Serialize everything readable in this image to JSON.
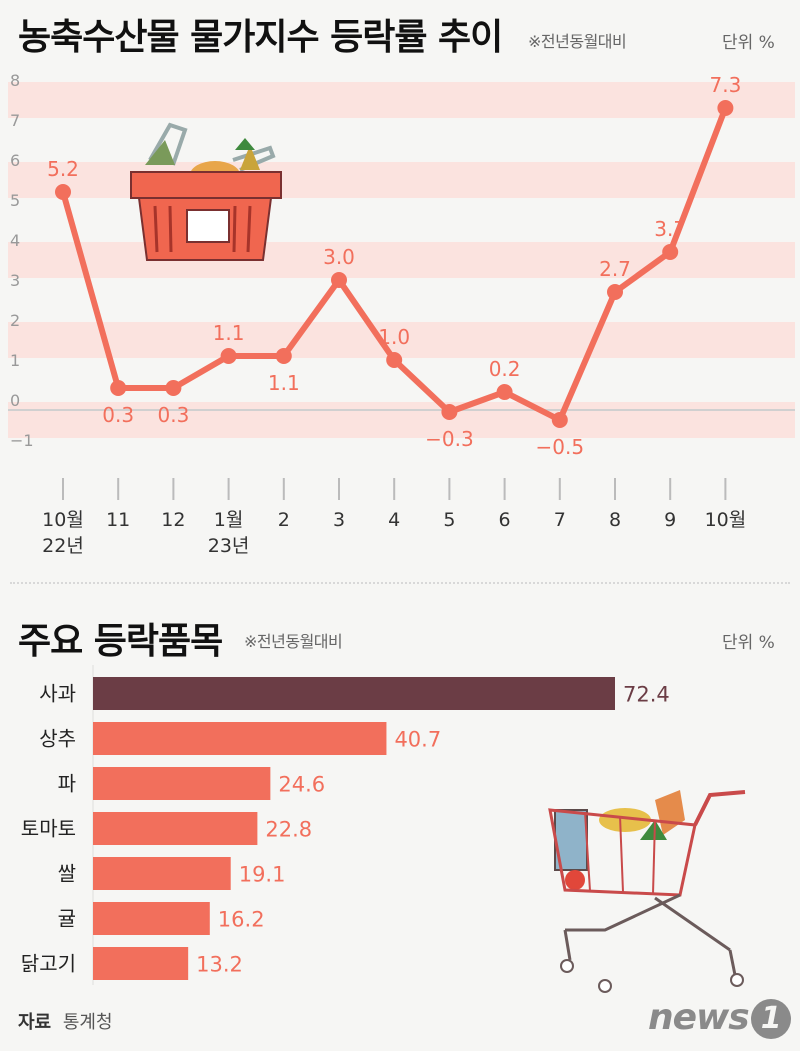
{
  "charts_section": {
    "line": {
      "title": "농축수산물 물가지수 등락률 추이",
      "note": "※전년동월대비",
      "unit": "단위  %"
    },
    "bar": {
      "title": "주요 등락품목",
      "note": "※전년동월대비",
      "unit": "단위  %"
    }
  },
  "chart_data": [
    {
      "type": "line",
      "title": "농축수산물 물가지수 등락률 추이",
      "ylim": [
        -1,
        8
      ],
      "yticks": [
        "8",
        "7",
        "6",
        "5",
        "4",
        "3",
        "2",
        "1",
        "0",
        "−1"
      ],
      "grid": "alternating horizontal bands",
      "x_tick_labels": [
        [
          "10월",
          "22년"
        ],
        [
          "11"
        ],
        [
          "12"
        ],
        [
          "1월",
          "23년"
        ],
        [
          "2"
        ],
        [
          "3"
        ],
        [
          "4"
        ],
        [
          "5"
        ],
        [
          "6"
        ],
        [
          "7"
        ],
        [
          "8"
        ],
        [
          "9"
        ],
        [
          "10월"
        ]
      ],
      "values": [
        5.2,
        0.3,
        0.3,
        1.1,
        1.1,
        3.0,
        1.0,
        -0.3,
        0.2,
        -0.5,
        2.7,
        3.7,
        7.3
      ],
      "data_labels": [
        "5.2",
        "0.3",
        "0.3",
        "1.1",
        "1.1",
        "3.0",
        "1.0",
        "−0.3",
        "0.2",
        "−0.5",
        "2.7",
        "3.7",
        "7.3"
      ],
      "color": "#f26f5c"
    },
    {
      "type": "bar",
      "orientation": "horizontal",
      "title": "주요 등락품목",
      "categories": [
        "사과",
        "상추",
        "파",
        "토마토",
        "쌀",
        "귤",
        "닭고기"
      ],
      "values": [
        72.4,
        40.7,
        24.6,
        22.8,
        19.1,
        16.2,
        13.2
      ],
      "data_labels": [
        "72.4",
        "40.7",
        "24.6",
        "22.8",
        "19.1",
        "16.2",
        "13.2"
      ],
      "highlight_color": "#6b3d45",
      "color": "#f26f5c"
    }
  ],
  "footer": {
    "source_label": "자료",
    "source_value": "통계청",
    "logo_text": "news",
    "logo_mark": "1"
  },
  "illustrations": {
    "top": "shopping-basket-icon",
    "bottom": "shopping-cart-icon"
  }
}
